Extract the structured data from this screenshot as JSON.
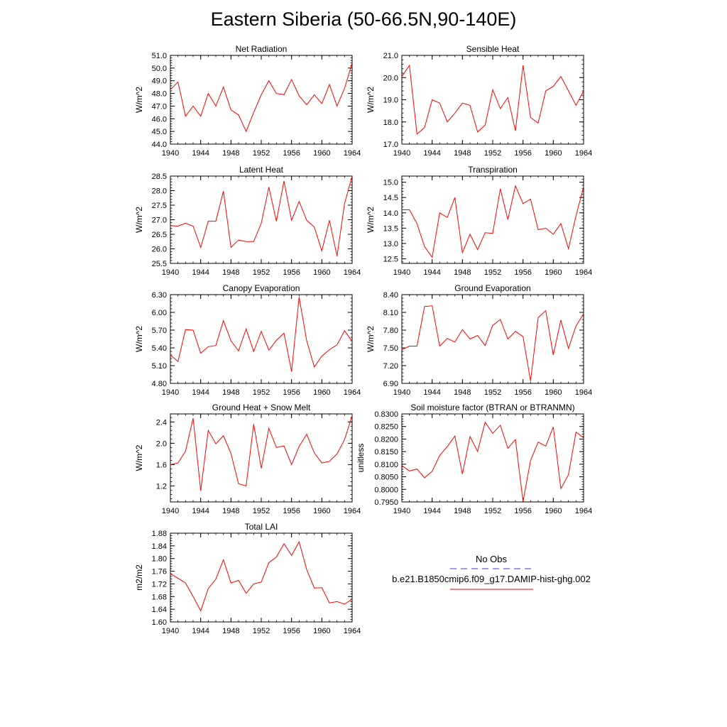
{
  "title": "Eastern Siberia (50-66.5N,90-140E)",
  "legend": {
    "entries": [
      {
        "label": "No Obs",
        "color": "#3a3ad6",
        "dashed": true
      },
      {
        "label": "b.e21.B1850cmip6.f09_g17.DAMIP-hist-ghg.002",
        "color": "#ff0000",
        "dashed": false
      }
    ]
  },
  "chart_data": [
    {
      "type": "line",
      "title": "Net Radiation",
      "ylabel": "W/m^2",
      "xlim": [
        1940,
        1964
      ],
      "ylim": [
        44.0,
        51.0
      ],
      "decimals": 1,
      "xticks": [
        1940,
        1944,
        1948,
        1952,
        1956,
        1960,
        1964
      ],
      "yticks": [
        44.0,
        45.0,
        46.0,
        47.0,
        48.0,
        49.0,
        50.0,
        51.0
      ],
      "color": "#ff0000",
      "x": [
        1940,
        1941,
        1942,
        1943,
        1944,
        1945,
        1946,
        1947,
        1948,
        1949,
        1950,
        1951,
        1952,
        1953,
        1954,
        1955,
        1956,
        1957,
        1958,
        1959,
        1960,
        1961,
        1962,
        1963,
        1964
      ],
      "y": [
        48.3,
        48.9,
        46.2,
        47.0,
        46.2,
        48.0,
        47.0,
        48.5,
        46.7,
        46.3,
        45.0,
        46.5,
        47.9,
        49.0,
        48.0,
        47.9,
        49.1,
        47.8,
        47.1,
        47.9,
        47.2,
        48.7,
        47.0,
        48.4,
        50.4
      ]
    },
    {
      "type": "line",
      "title": "Sensible Heat",
      "ylabel": "W/m^2",
      "xlim": [
        1940,
        1964
      ],
      "ylim": [
        17.0,
        21.0
      ],
      "decimals": 1,
      "xticks": [
        1940,
        1944,
        1948,
        1952,
        1956,
        1960,
        1964
      ],
      "yticks": [
        17.0,
        18.0,
        19.0,
        20.0,
        21.0
      ],
      "color": "#ff0000",
      "x": [
        1940,
        1941,
        1942,
        1943,
        1944,
        1945,
        1946,
        1947,
        1948,
        1949,
        1950,
        1951,
        1952,
        1953,
        1954,
        1955,
        1956,
        1957,
        1958,
        1959,
        1960,
        1961,
        1962,
        1963,
        1964
      ],
      "y": [
        20.05,
        20.55,
        17.45,
        17.75,
        19.0,
        18.85,
        18.0,
        18.4,
        18.85,
        18.75,
        17.55,
        17.85,
        19.45,
        18.6,
        19.1,
        17.6,
        20.55,
        18.2,
        17.95,
        19.4,
        19.6,
        20.05,
        19.4,
        18.75,
        19.4
      ]
    },
    {
      "type": "line",
      "title": "Latent Heat",
      "ylabel": "W/m^2",
      "xlim": [
        1940,
        1964
      ],
      "ylim": [
        25.5,
        28.5
      ],
      "decimals": 1,
      "xticks": [
        1940,
        1944,
        1948,
        1952,
        1956,
        1960,
        1964
      ],
      "yticks": [
        25.5,
        26.0,
        26.5,
        27.0,
        27.5,
        28.0,
        28.5
      ],
      "color": "#ff0000",
      "x": [
        1940,
        1941,
        1942,
        1943,
        1944,
        1945,
        1946,
        1947,
        1948,
        1949,
        1950,
        1951,
        1952,
        1953,
        1954,
        1955,
        1956,
        1957,
        1958,
        1959,
        1960,
        1961,
        1962,
        1963,
        1964
      ],
      "y": [
        26.8,
        26.78,
        26.88,
        26.78,
        26.05,
        26.95,
        26.95,
        27.98,
        26.05,
        26.3,
        26.25,
        26.25,
        26.88,
        28.12,
        26.95,
        28.33,
        26.98,
        27.63,
        26.98,
        26.75,
        25.93,
        26.98,
        25.75,
        27.55,
        28.5
      ]
    },
    {
      "type": "line",
      "title": "Transpiration",
      "ylabel": "W/m^2",
      "xlim": [
        1940,
        1964
      ],
      "ylim": [
        12.35,
        15.2
      ],
      "decimals": 1,
      "xticks": [
        1940,
        1944,
        1948,
        1952,
        1956,
        1960,
        1964
      ],
      "yticks": [
        12.5,
        13.0,
        13.5,
        14.0,
        14.5,
        15.0
      ],
      "color": "#ff0000",
      "x": [
        1940,
        1941,
        1942,
        1943,
        1944,
        1945,
        1946,
        1947,
        1948,
        1949,
        1950,
        1951,
        1952,
        1953,
        1954,
        1955,
        1956,
        1957,
        1958,
        1959,
        1960,
        1961,
        1962,
        1963,
        1964
      ],
      "y": [
        14.1,
        14.1,
        13.65,
        12.9,
        12.55,
        14.0,
        13.85,
        14.5,
        12.7,
        13.3,
        12.8,
        13.35,
        13.33,
        14.78,
        13.78,
        14.88,
        14.3,
        14.45,
        13.45,
        13.5,
        13.3,
        13.65,
        12.83,
        13.9,
        14.85
      ]
    },
    {
      "type": "line",
      "title": "Canopy Evaporation",
      "ylabel": "W/m^2",
      "xlim": [
        1940,
        1964
      ],
      "ylim": [
        4.8,
        6.3
      ],
      "decimals": 2,
      "xticks": [
        1940,
        1944,
        1948,
        1952,
        1956,
        1960,
        1964
      ],
      "yticks": [
        4.8,
        5.1,
        5.4,
        5.7,
        6.0,
        6.3
      ],
      "color": "#ff0000",
      "x": [
        1940,
        1941,
        1942,
        1943,
        1944,
        1945,
        1946,
        1947,
        1948,
        1949,
        1950,
        1951,
        1952,
        1953,
        1954,
        1955,
        1956,
        1957,
        1958,
        1959,
        1960,
        1961,
        1962,
        1963,
        1964
      ],
      "y": [
        5.28,
        5.17,
        5.71,
        5.7,
        5.31,
        5.42,
        5.44,
        5.86,
        5.52,
        5.35,
        5.72,
        5.34,
        5.68,
        5.36,
        5.53,
        5.65,
        5.0,
        6.26,
        5.52,
        5.08,
        5.26,
        5.37,
        5.45,
        5.69,
        5.51
      ]
    },
    {
      "type": "line",
      "title": "Ground Evaporation",
      "ylabel": "W/m^2",
      "xlim": [
        1940,
        1964
      ],
      "ylim": [
        6.9,
        8.4
      ],
      "decimals": 2,
      "xticks": [
        1940,
        1944,
        1948,
        1952,
        1956,
        1960,
        1964
      ],
      "yticks": [
        6.9,
        7.2,
        7.5,
        7.8,
        8.1,
        8.4
      ],
      "color": "#ff0000",
      "x": [
        1940,
        1941,
        1942,
        1943,
        1944,
        1945,
        1946,
        1947,
        1948,
        1949,
        1950,
        1951,
        1952,
        1953,
        1954,
        1955,
        1956,
        1957,
        1958,
        1959,
        1960,
        1961,
        1962,
        1963,
        1964
      ],
      "y": [
        7.47,
        7.53,
        7.53,
        8.2,
        8.21,
        7.53,
        7.66,
        7.6,
        7.81,
        7.65,
        7.71,
        7.54,
        7.88,
        7.98,
        7.65,
        7.78,
        7.69,
        6.94,
        8.01,
        8.13,
        7.38,
        7.97,
        7.49,
        7.87,
        8.08
      ]
    },
    {
      "type": "line",
      "title": "Ground Heat + Snow Melt",
      "ylabel": "W/m^2",
      "xlim": [
        1940,
        1964
      ],
      "ylim": [
        0.9,
        2.55
      ],
      "decimals": 1,
      "xticks": [
        1940,
        1944,
        1948,
        1952,
        1956,
        1960,
        1964
      ],
      "yticks": [
        1.2,
        1.6,
        2.0,
        2.4
      ],
      "color": "#ff0000",
      "x": [
        1940,
        1941,
        1942,
        1943,
        1944,
        1945,
        1946,
        1947,
        1948,
        1949,
        1950,
        1951,
        1952,
        1953,
        1954,
        1955,
        1956,
        1957,
        1958,
        1959,
        1960,
        1961,
        1962,
        1963,
        1964
      ],
      "y": [
        1.6,
        1.63,
        1.85,
        2.47,
        1.11,
        2.24,
        1.99,
        2.14,
        1.81,
        1.24,
        1.2,
        2.36,
        1.53,
        2.28,
        1.92,
        1.95,
        1.6,
        1.94,
        2.17,
        1.82,
        1.63,
        1.66,
        1.8,
        2.07,
        2.52
      ]
    },
    {
      "type": "line",
      "title": "Soil moisture factor (BTRAN or BTRANMN)",
      "ylabel": "unitless",
      "xlim": [
        1940,
        1964
      ],
      "ylim": [
        0.795,
        0.83
      ],
      "decimals": 4,
      "xticks": [
        1940,
        1944,
        1948,
        1952,
        1956,
        1960,
        1964
      ],
      "yticks": [
        0.795,
        0.8,
        0.805,
        0.81,
        0.815,
        0.82,
        0.825,
        0.83
      ],
      "color": "#ff0000",
      "x": [
        1940,
        1941,
        1942,
        1943,
        1944,
        1945,
        1946,
        1947,
        1948,
        1949,
        1950,
        1951,
        1952,
        1953,
        1954,
        1955,
        1956,
        1957,
        1958,
        1959,
        1960,
        1961,
        1962,
        1963,
        1964
      ],
      "y": [
        0.8095,
        0.8073,
        0.8081,
        0.8046,
        0.8072,
        0.8135,
        0.817,
        0.8212,
        0.8061,
        0.821,
        0.8151,
        0.8267,
        0.8223,
        0.8255,
        0.8163,
        0.8198,
        0.7952,
        0.8115,
        0.8188,
        0.8172,
        0.8248,
        0.8003,
        0.8058,
        0.8228,
        0.8205
      ]
    },
    {
      "type": "line",
      "title": "Total LAI",
      "ylabel": "m2/m2",
      "xlim": [
        1940,
        1964
      ],
      "ylim": [
        1.6,
        1.88
      ],
      "decimals": 2,
      "xticks": [
        1940,
        1944,
        1948,
        1952,
        1956,
        1960,
        1964
      ],
      "yticks": [
        1.6,
        1.64,
        1.68,
        1.72,
        1.76,
        1.8,
        1.84,
        1.88
      ],
      "color": "#ff0000",
      "x": [
        1940,
        1941,
        1942,
        1943,
        1944,
        1945,
        1946,
        1947,
        1948,
        1949,
        1950,
        1951,
        1952,
        1953,
        1954,
        1955,
        1956,
        1957,
        1958,
        1959,
        1960,
        1961,
        1962,
        1963,
        1964
      ],
      "y": [
        1.752,
        1.738,
        1.723,
        1.68,
        1.635,
        1.705,
        1.735,
        1.796,
        1.723,
        1.731,
        1.69,
        1.72,
        1.726,
        1.787,
        1.805,
        1.847,
        1.81,
        1.853,
        1.765,
        1.707,
        1.708,
        1.66,
        1.664,
        1.656,
        1.672
      ]
    }
  ]
}
